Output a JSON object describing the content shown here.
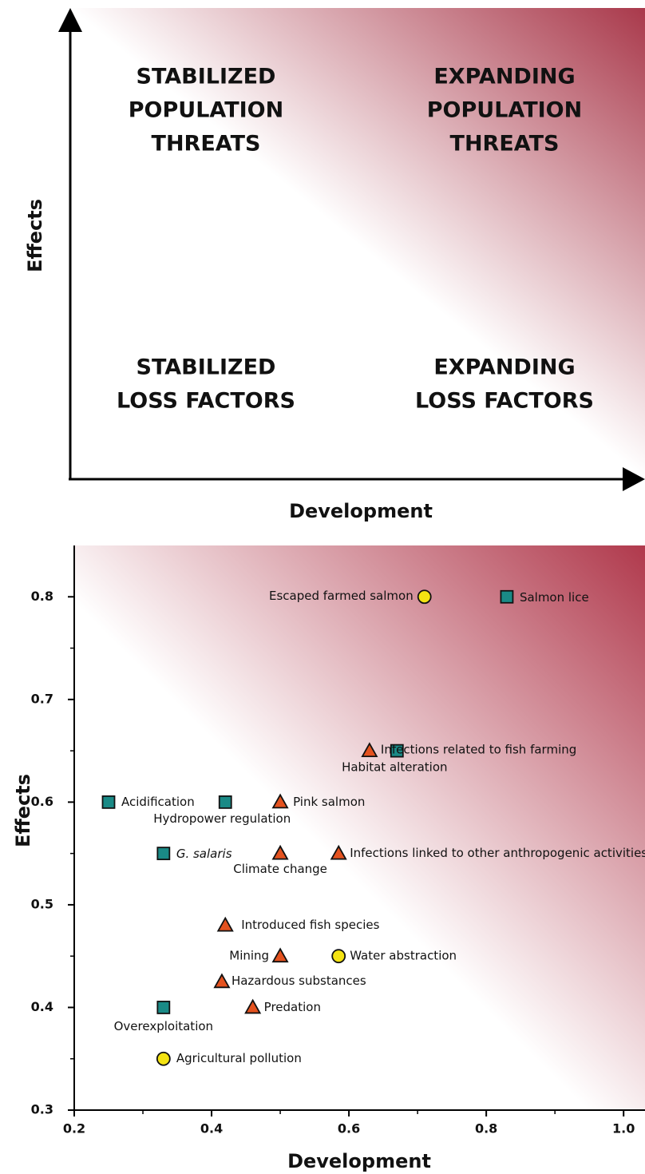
{
  "chart_data": [
    {
      "type": "quadrant",
      "x_label": "Development",
      "y_label": "Effects",
      "quadrants": [
        {
          "lines": [
            "STABILIZED",
            "POPULATION",
            "THREATS"
          ]
        },
        {
          "lines": [
            "EXPANDING",
            "POPULATION",
            "THREATS"
          ]
        },
        {
          "lines": [
            "STABILIZED",
            "LOSS FACTORS"
          ]
        },
        {
          "lines": [
            "EXPANDING",
            "LOSS FACTORS"
          ]
        }
      ],
      "gradient": [
        "#ffffff",
        "#a9394b"
      ]
    },
    {
      "type": "scatter",
      "x_label": "Development",
      "y_label": "Effects",
      "xlim": [
        0.2,
        1.03
      ],
      "ylim": [
        0.3,
        0.85
      ],
      "xticks": [
        0.2,
        0.4,
        0.6,
        0.8,
        {
          "value": 1,
          "label": "1.0"
        }
      ],
      "yticks": [
        0.3,
        0.4,
        0.5,
        0.6,
        0.7,
        0.8
      ],
      "xminor": [
        0.3,
        0.5,
        0.7,
        0.9
      ],
      "yminor": [
        0.35,
        0.45,
        0.55,
        0.65,
        0.75
      ],
      "gradient": [
        "#ffffff",
        "#b0394c"
      ],
      "series": [
        {
          "marker": "square",
          "color": "#1a8a86",
          "x": [
            0.83,
            0.67,
            0.25,
            0.42,
            0.33,
            0.33
          ],
          "y": [
            0.8,
            0.65,
            0.6,
            0.6,
            0.55,
            0.4
          ],
          "labels": [
            "Salmon lice",
            "Habitat alteration",
            "Acidification",
            "Hydropower regulation",
            "G. salaris",
            "Overexploitation"
          ]
        },
        {
          "marker": "triangle",
          "color": "#e4521f",
          "x": [
            0.63,
            0.5,
            0.5,
            0.585,
            0.42,
            0.5,
            0.415,
            0.46
          ],
          "y": [
            0.65,
            0.6,
            0.55,
            0.55,
            0.48,
            0.45,
            0.425,
            0.4
          ],
          "labels": [
            "Infections related to fish farming",
            "Pink salmon",
            "Climate change",
            "Infections linked to other anthropogenic activities",
            "Introduced fish species",
            "Mining",
            "Hazardous substances",
            "Predation"
          ]
        },
        {
          "marker": "circle",
          "color": "#f4e312",
          "x": [
            0.71,
            0.585,
            0.33
          ],
          "y": [
            0.8,
            0.45,
            0.35
          ],
          "labels": [
            "Escaped farmed salmon",
            "Water abstraction",
            "Agricultural pollution"
          ]
        }
      ]
    }
  ]
}
